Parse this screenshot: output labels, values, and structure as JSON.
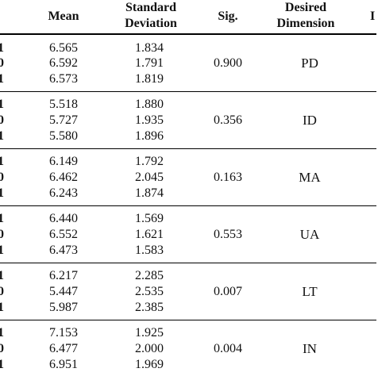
{
  "columns": {
    "mean": "Mean",
    "sd_line1": "Standard",
    "sd_line2": "Deviation",
    "sig": "Sig.",
    "dim_line1": "Desired",
    "dim_line2": "Dimension",
    "cut": "I"
  },
  "row_markers": [
    "1",
    "0",
    "1"
  ],
  "groups": [
    {
      "means": [
        "6.565",
        "6.592",
        "6.573"
      ],
      "sds": [
        "1.834",
        "1.791",
        "1.819"
      ],
      "sig": "0.900",
      "dimension": "PD"
    },
    {
      "means": [
        "5.518",
        "5.727",
        "5.580"
      ],
      "sds": [
        "1.880",
        "1.935",
        "1.896"
      ],
      "sig": "0.356",
      "dimension": "ID"
    },
    {
      "means": [
        "6.149",
        "6.462",
        "6.243"
      ],
      "sds": [
        "1.792",
        "2.045",
        "1.874"
      ],
      "sig": "0.163",
      "dimension": "MA"
    },
    {
      "means": [
        "6.440",
        "6.552",
        "6.473"
      ],
      "sds": [
        "1.569",
        "1.621",
        "1.583"
      ],
      "sig": "0.553",
      "dimension": "UA"
    },
    {
      "means": [
        "6.217",
        "5.447",
        "5.987"
      ],
      "sds": [
        "2.285",
        "2.535",
        "2.385"
      ],
      "sig": "0.007",
      "dimension": "LT"
    },
    {
      "means": [
        "7.153",
        "6.477",
        "6.951"
      ],
      "sds": [
        "1.925",
        "2.000",
        "1.969"
      ],
      "sig": "0.004",
      "dimension": "IN"
    }
  ]
}
